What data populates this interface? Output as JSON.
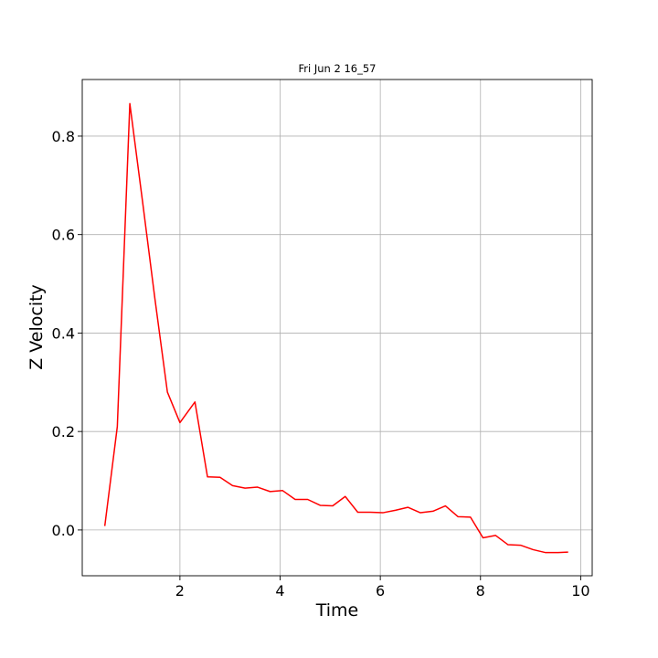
{
  "chart_data": {
    "type": "line",
    "title": "Fri Jun  2 16_57",
    "xlabel": "Time",
    "ylabel": "Z Velocity",
    "xlim": [
      0.05,
      10.23
    ],
    "ylim": [
      -0.093,
      0.915
    ],
    "xticks": [
      2,
      4,
      6,
      8,
      10
    ],
    "yticks": [
      0.0,
      0.2,
      0.4,
      0.6,
      0.8
    ],
    "xtick_labels": [
      "2",
      "4",
      "6",
      "8",
      "10"
    ],
    "ytick_labels": [
      "0.0",
      "0.2",
      "0.4",
      "0.6",
      "0.8"
    ],
    "grid": true,
    "line_color": "#ff0000",
    "series": [
      {
        "x": [
          0.5,
          0.75,
          1.0,
          1.25,
          1.5,
          1.75,
          2.0,
          2.3,
          2.55,
          2.8,
          3.05,
          3.3,
          3.55,
          3.8,
          4.05,
          4.3,
          4.55,
          4.8,
          5.05,
          5.3,
          5.55,
          5.8,
          6.05,
          6.3,
          6.55,
          6.8,
          7.05,
          7.3,
          7.55,
          7.8,
          8.05,
          8.3,
          8.55,
          8.8,
          9.05,
          9.3,
          9.55,
          9.75
        ],
        "y": [
          0.008,
          0.21,
          0.866,
          0.67,
          0.47,
          0.28,
          0.218,
          0.26,
          0.108,
          0.107,
          0.09,
          0.085,
          0.087,
          0.078,
          0.08,
          0.062,
          0.062,
          0.05,
          0.049,
          0.068,
          0.036,
          0.036,
          0.035,
          0.04,
          0.046,
          0.035,
          0.038,
          0.049,
          0.027,
          0.026,
          -0.016,
          -0.011,
          -0.03,
          -0.031,
          -0.04,
          -0.046,
          -0.046,
          -0.045
        ]
      }
    ]
  }
}
